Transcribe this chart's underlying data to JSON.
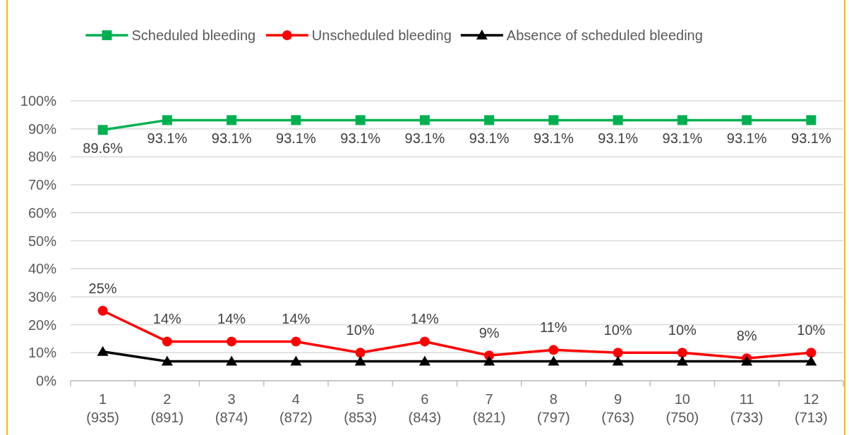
{
  "chart_data": {
    "type": "line",
    "categories": [
      "1\n(935)",
      "2\n(891)",
      "3\n(874)",
      "4\n(872)",
      "5\n(853)",
      "6\n(843)",
      "7\n(821)",
      "8\n(797)",
      "9\n(763)",
      "10\n(750)",
      "11\n(733)",
      "12\n(713)"
    ],
    "ylim": [
      0,
      100
    ],
    "yticks": [
      {
        "value": 0,
        "label": "0%"
      },
      {
        "value": 10,
        "label": "10%"
      },
      {
        "value": 20,
        "label": "20%"
      },
      {
        "value": 30,
        "label": "30%"
      },
      {
        "value": 40,
        "label": "40%"
      },
      {
        "value": 50,
        "label": "50%"
      },
      {
        "value": 60,
        "label": "60%"
      },
      {
        "value": 70,
        "label": "70%"
      },
      {
        "value": 80,
        "label": "80%"
      },
      {
        "value": 90,
        "label": "90%"
      },
      {
        "value": 100,
        "label": "100%"
      }
    ],
    "grid": "y",
    "legend": "top",
    "series": [
      {
        "name": "Scheduled bleeding",
        "color": "#00b050",
        "marker": "square",
        "values": [
          89.6,
          93.1,
          93.1,
          93.1,
          93.1,
          93.1,
          93.1,
          93.1,
          93.1,
          93.1,
          93.1,
          93.1
        ],
        "value_labels": [
          "89.6%",
          "93.1%",
          "93.1%",
          "93.1%",
          "93.1%",
          "93.1%",
          "93.1%",
          "93.1%",
          "93.1%",
          "93.1%",
          "93.1%",
          "93.1%"
        ]
      },
      {
        "name": "Unscheduled bleeding",
        "color": "#ff0000",
        "marker": "circle",
        "values": [
          25,
          14,
          14,
          14,
          10,
          14,
          9,
          11,
          10,
          10,
          8,
          10
        ],
        "value_labels": [
          "25%",
          "14%",
          "14%",
          "14%",
          "10%",
          "14%",
          "9%",
          "11%",
          "10%",
          "10%",
          "8%",
          "10%"
        ]
      },
      {
        "name": "Absence of scheduled bleeding",
        "color": "#000000",
        "marker": "triangle",
        "values": [
          10.4,
          6.9,
          6.9,
          6.9,
          6.9,
          6.9,
          6.9,
          6.9,
          6.9,
          6.9,
          6.9,
          6.9
        ]
      }
    ]
  }
}
